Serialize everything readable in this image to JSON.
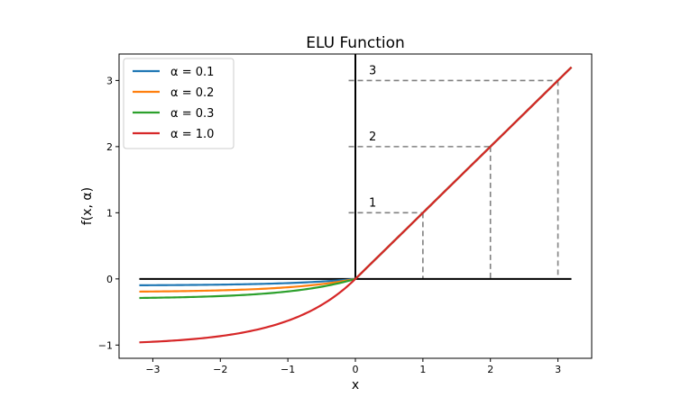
{
  "chart_data": {
    "type": "line",
    "title": "ELU Function",
    "xlabel": "x",
    "ylabel": "f(x, α)",
    "xlim": [
      -3.5,
      3.5
    ],
    "ylim": [
      -1.2,
      3.4
    ],
    "x_ticks": [
      -3,
      -2,
      -1,
      0,
      1,
      2,
      3
    ],
    "x_tick_labels": [
      "−3",
      "−2",
      "−1",
      "0",
      "1",
      "2",
      "3"
    ],
    "y_ticks": [
      -1,
      0,
      1,
      2,
      3
    ],
    "y_tick_labels": [
      "−1",
      "0",
      "1",
      "2",
      "3"
    ],
    "grid": false,
    "legend_position": "top-left",
    "x_range": [
      -3.2,
      3.2
    ],
    "series": [
      {
        "name": "α = 0.1",
        "alpha": 0.1,
        "color": "#1f77b4"
      },
      {
        "name": "α = 0.2",
        "alpha": 0.2,
        "color": "#ff7f0e"
      },
      {
        "name": "α = 0.3",
        "alpha": 0.3,
        "color": "#2ca02c"
      },
      {
        "name": "α = 1.0",
        "alpha": 1.0,
        "color": "#d62728"
      }
    ],
    "axes_lines": {
      "horizontal": {
        "from": [
          -3.2,
          0
        ],
        "to": [
          3.2,
          0
        ]
      },
      "vertical": {
        "from": [
          0,
          0
        ],
        "to": [
          0,
          3.4
        ]
      },
      "color": "#000000"
    },
    "guide_lines": [
      1,
      2,
      3
    ],
    "guide_color": "#808080",
    "annotations": [
      {
        "text": "1",
        "x": 0.2,
        "y": 1.15
      },
      {
        "text": "2",
        "x": 0.2,
        "y": 2.15
      },
      {
        "text": "3",
        "x": 0.2,
        "y": 3.15
      }
    ]
  }
}
